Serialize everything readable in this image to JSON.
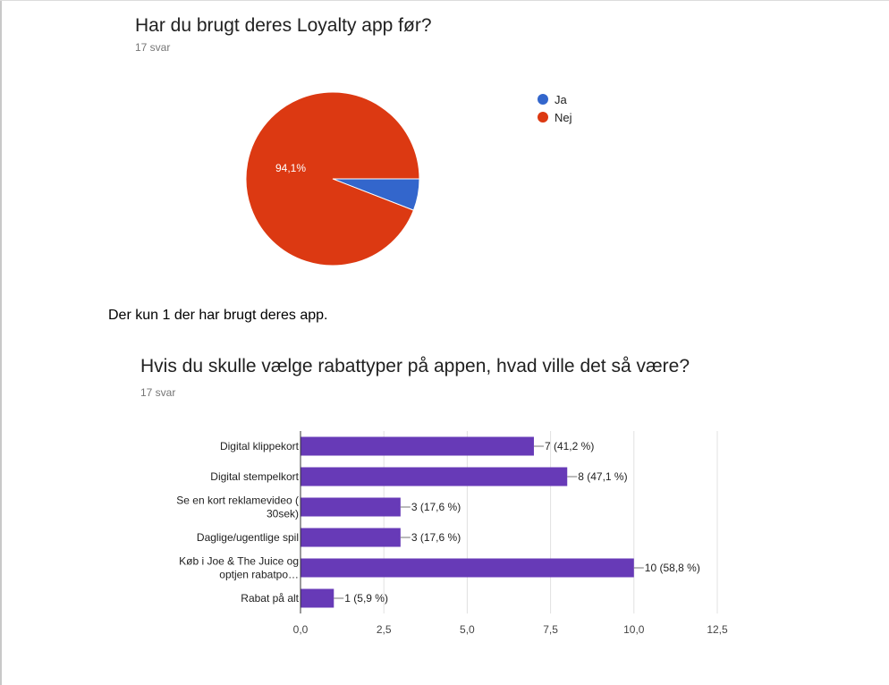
{
  "q1": {
    "title": "Har du brugt deres Loyalty app før?",
    "count": "17 svar"
  },
  "note": "Der kun 1 der har brugt deres app.",
  "q2": {
    "title": "Hvis du skulle vælge rabattyper på appen, hvad ville det så være?",
    "count": "17 svar"
  },
  "chart_data": [
    {
      "type": "pie",
      "slices": [
        {
          "label": "Ja",
          "value": 5.9,
          "color": "#3366cc"
        },
        {
          "label": "Nej",
          "value": 94.1,
          "color": "#dc3912",
          "data_label": "94,1%"
        }
      ],
      "legend": "right"
    },
    {
      "type": "bar",
      "orientation": "horizontal",
      "categories": [
        [
          "Digital klippekort"
        ],
        [
          "Digital stempelkort"
        ],
        [
          "Se en kort reklamevideo (",
          "30sek)"
        ],
        [
          "Daglige/ugentlige spil"
        ],
        [
          "Køb i Joe & The Juice og",
          "optjen rabatpo…"
        ],
        [
          "Rabat på alt"
        ]
      ],
      "values": [
        7,
        8,
        3,
        3,
        10,
        1
      ],
      "value_labels": [
        "7 (41,2 %)",
        "8 (47,1 %)",
        "3 (17,6 %)",
        "3 (17,6 %)",
        "10 (58,8 %)",
        "1 (5,9 %)"
      ],
      "xlim": [
        0,
        12.5
      ],
      "ticks": [
        0,
        2.5,
        5,
        7.5,
        10,
        12.5
      ],
      "tick_labels": [
        "0,0",
        "2,5",
        "5,0",
        "7,5",
        "10,0",
        "12,5"
      ],
      "bar_color": "#673ab7",
      "grid": true
    }
  ]
}
